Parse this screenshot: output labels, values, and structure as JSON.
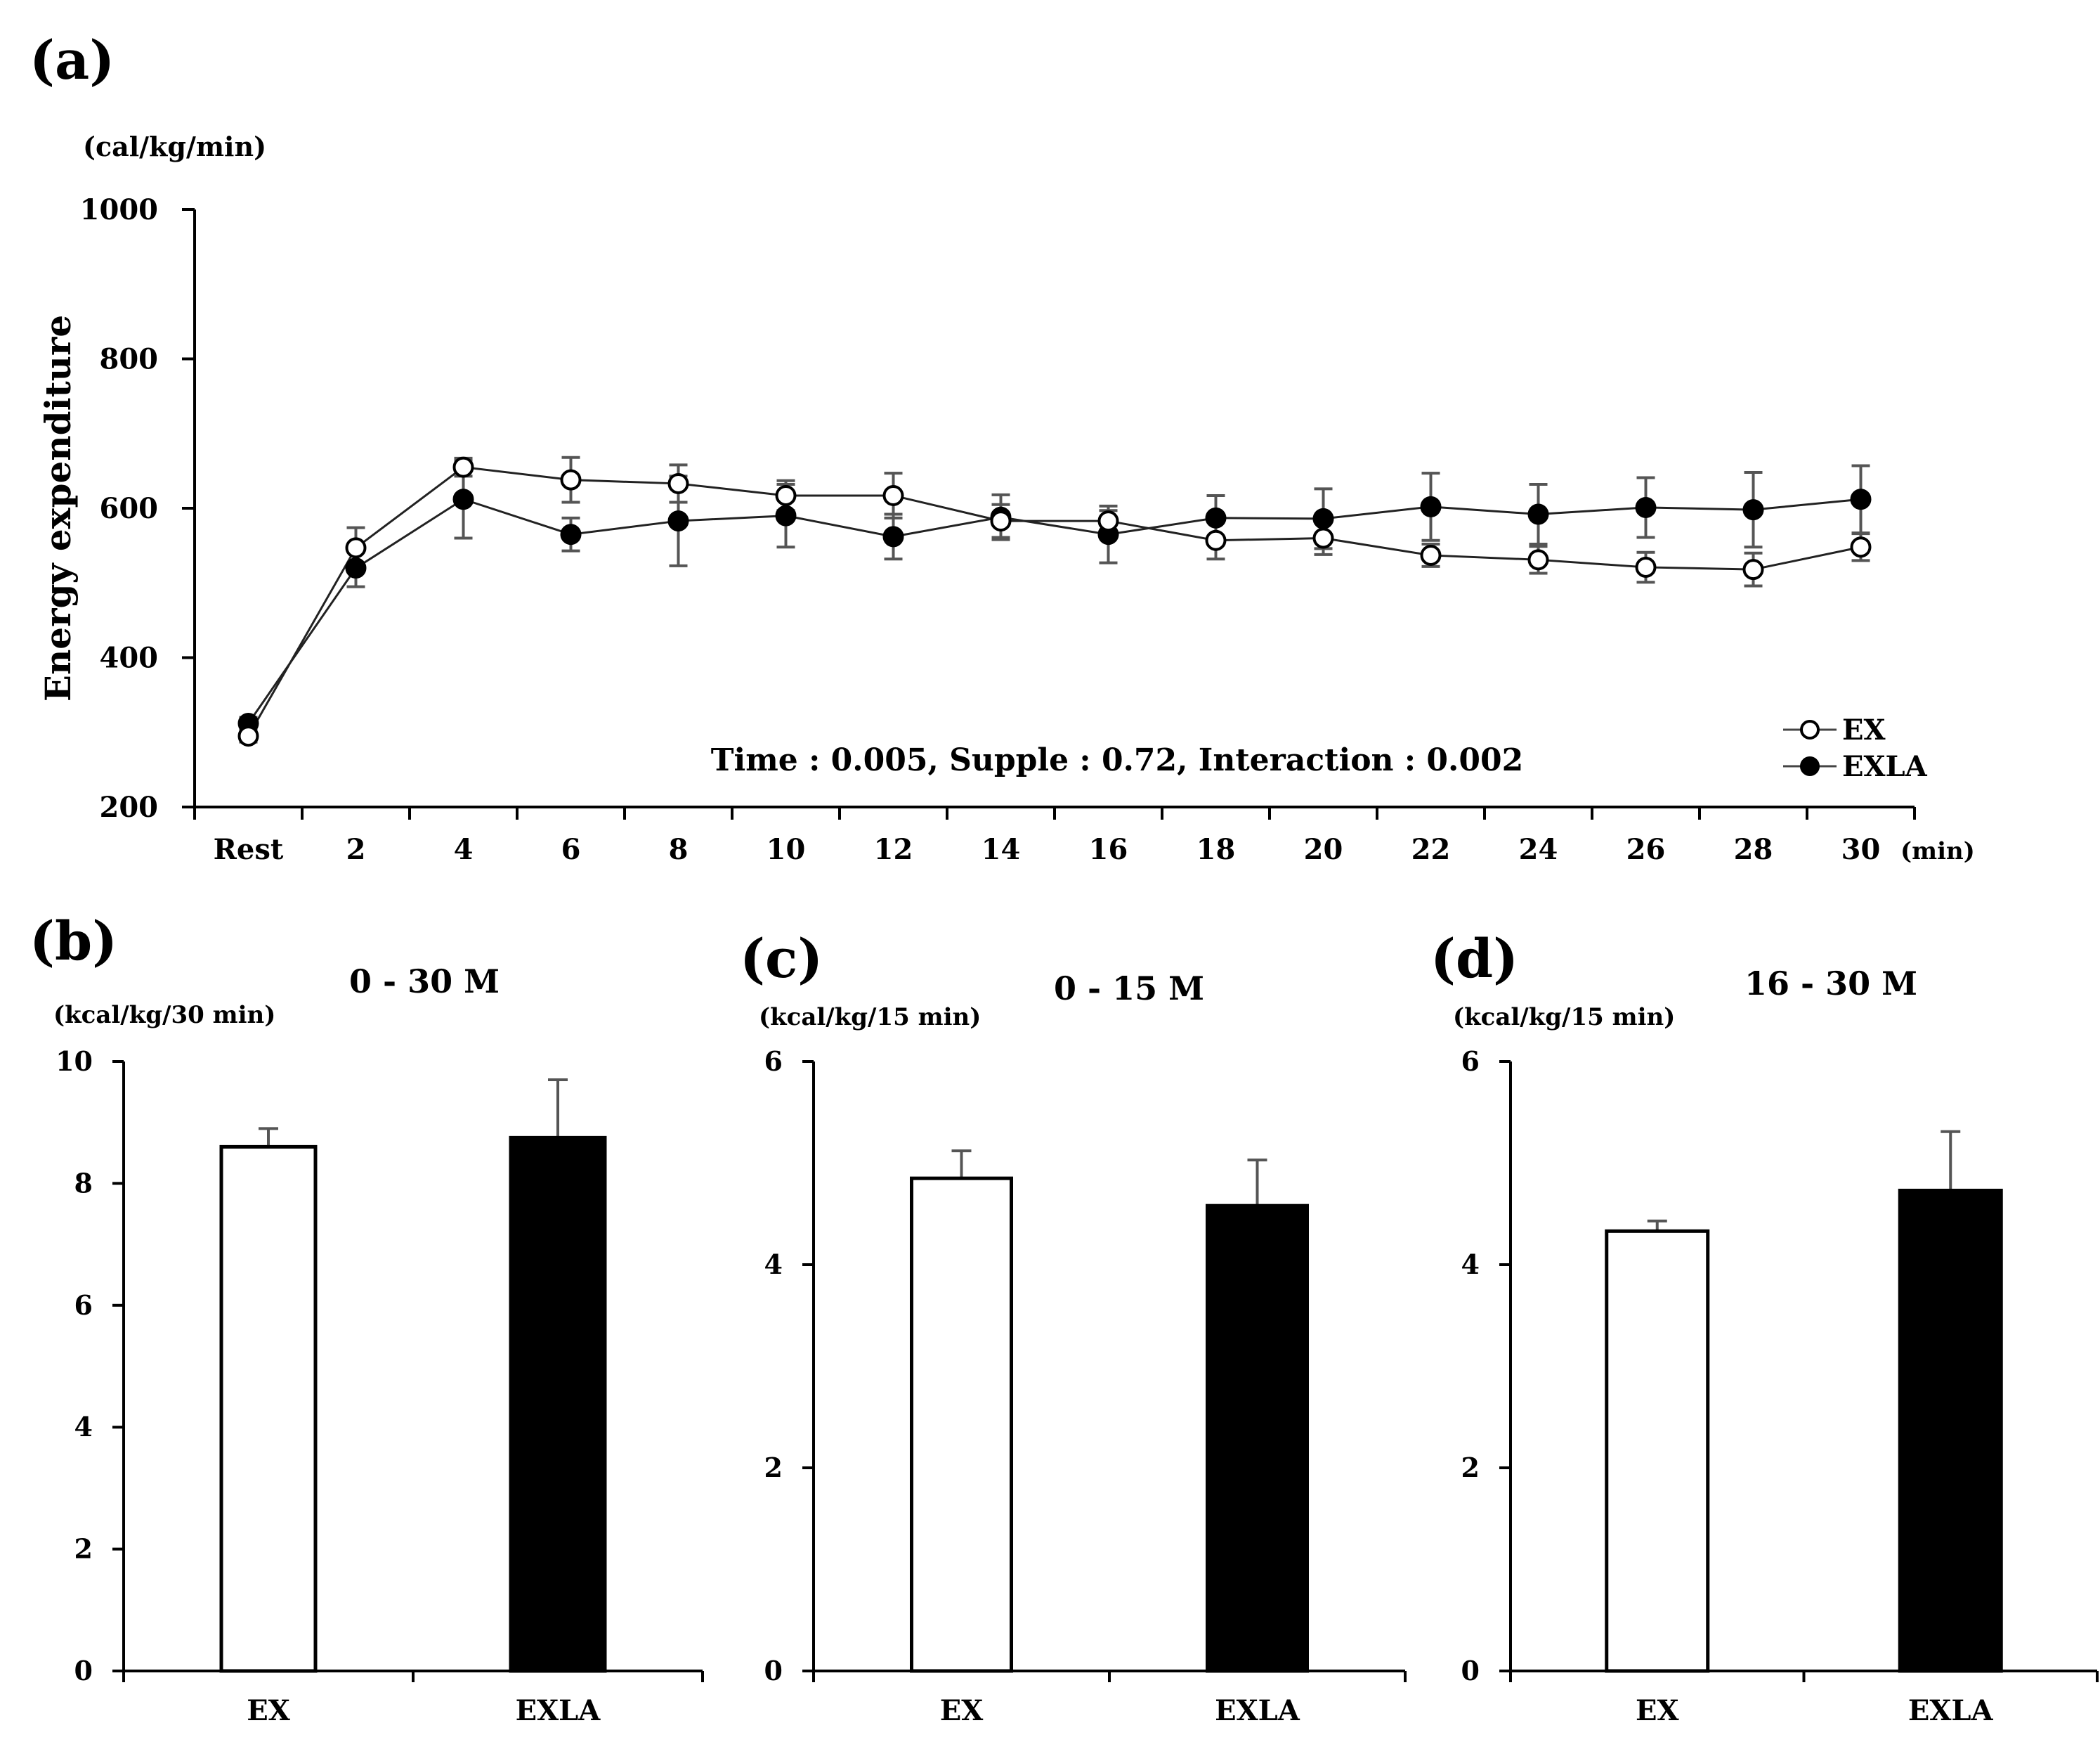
{
  "chart_data": [
    {
      "panel_label": "(a)",
      "type": "line",
      "title": "",
      "unit_label": "(cal/kg/min)",
      "ylabel": "Energy expenditure",
      "xunit_label": "(min)",
      "categories": [
        "Rest",
        "2",
        "4",
        "6",
        "8",
        "10",
        "12",
        "14",
        "16",
        "18",
        "20",
        "22",
        "24",
        "26",
        "28",
        "30"
      ],
      "ylim": [
        200,
        1000
      ],
      "yticks": [
        "200",
        "400",
        "600",
        "800",
        "1000"
      ],
      "grid": false,
      "legend_position": "bottom-right",
      "annotation": "Time : 0.005,  Supple : 0.72,  Interaction : 0.002",
      "series": [
        {
          "name": "EX",
          "marker": "open-circle",
          "values": [
            295,
            547,
            655,
            638,
            633,
            617,
            617,
            583,
            583,
            557,
            560,
            537,
            531,
            521,
            518,
            548
          ],
          "errors": [
            8,
            27,
            12,
            30,
            25,
            20,
            30,
            22,
            14,
            25,
            22,
            15,
            18,
            20,
            22,
            18
          ]
        },
        {
          "name": "EXLA",
          "marker": "filled-circle",
          "values": [
            312,
            520,
            612,
            565,
            583,
            590,
            562,
            588,
            565,
            587,
            586,
            602,
            592,
            601,
            598,
            612
          ],
          "errors": [
            8,
            25,
            52,
            22,
            60,
            42,
            30,
            30,
            38,
            30,
            40,
            45,
            40,
            40,
            50,
            45
          ]
        }
      ]
    },
    {
      "panel_label": "(b)",
      "type": "bar",
      "title": "0 - 30 M",
      "unit_label": "(kcal/kg/30 min)",
      "categories": [
        "EX",
        "EXLA"
      ],
      "values": [
        8.6,
        8.75
      ],
      "errors": [
        0.3,
        0.95
      ],
      "bar_colors": [
        "#ffffff",
        "#000000"
      ],
      "ylim": [
        0,
        10
      ],
      "yticks": [
        "0",
        "2",
        "4",
        "6",
        "8",
        "10"
      ]
    },
    {
      "panel_label": "(c)",
      "type": "bar",
      "title": "0 - 15 M",
      "unit_label": "(kcal/kg/15 min)",
      "categories": [
        "EX",
        "EXLA"
      ],
      "values": [
        4.85,
        4.58
      ],
      "errors": [
        0.27,
        0.45
      ],
      "bar_colors": [
        "#ffffff",
        "#000000"
      ],
      "ylim": [
        0,
        6
      ],
      "yticks": [
        "0",
        "2",
        "4",
        "6"
      ]
    },
    {
      "panel_label": "(d)",
      "type": "bar",
      "title": "16 - 30 M",
      "unit_label": "(kcal/kg/15 min)",
      "categories": [
        "EX",
        "EXLA"
      ],
      "values": [
        4.33,
        4.73
      ],
      "errors": [
        0.1,
        0.58
      ],
      "bar_colors": [
        "#ffffff",
        "#000000"
      ],
      "ylim": [
        0,
        6
      ],
      "yticks": [
        "0",
        "2",
        "4",
        "6"
      ]
    }
  ]
}
